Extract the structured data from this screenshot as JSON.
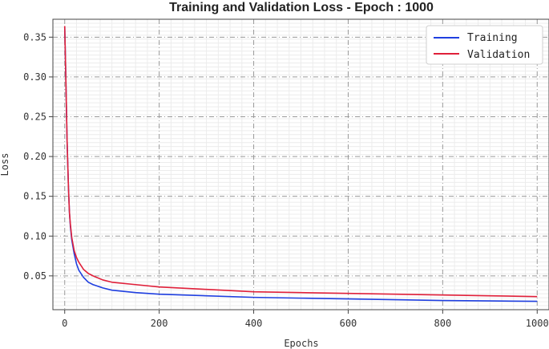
{
  "chart_data": {
    "type": "line",
    "title": "Training and Validation Loss - Epoch : 1000",
    "xlabel": "Epochs",
    "ylabel": "Loss",
    "xlim": [
      -25,
      1025
    ],
    "ylim": [
      0.0075,
      0.3725
    ],
    "xticks": [
      0,
      200,
      400,
      600,
      800,
      1000
    ],
    "yticks": [
      0.05,
      0.1,
      0.15,
      0.2,
      0.25,
      0.3,
      0.35
    ],
    "ytick_labels": [
      "0.05",
      "0.10",
      "0.15",
      "0.20",
      "0.25",
      "0.30",
      "0.35"
    ],
    "grid": true,
    "legend": "top-right",
    "series": [
      {
        "name": "Training",
        "color": "#1f3fe0",
        "x": [
          0,
          2,
          5,
          8,
          10,
          12,
          15,
          20,
          25,
          30,
          40,
          50,
          60,
          80,
          100,
          150,
          200,
          300,
          400,
          500,
          600,
          700,
          800,
          900,
          1000
        ],
        "y": [
          0.363,
          0.31,
          0.22,
          0.16,
          0.13,
          0.112,
          0.095,
          0.078,
          0.065,
          0.057,
          0.048,
          0.042,
          0.039,
          0.035,
          0.032,
          0.029,
          0.027,
          0.025,
          0.023,
          0.022,
          0.021,
          0.02,
          0.019,
          0.0185,
          0.018
        ]
      },
      {
        "name": "Validation",
        "color": "#e0203a",
        "x": [
          0,
          2,
          5,
          8,
          10,
          12,
          15,
          20,
          25,
          30,
          40,
          50,
          60,
          80,
          100,
          150,
          200,
          300,
          400,
          500,
          600,
          700,
          800,
          900,
          1000
        ],
        "y": [
          0.364,
          0.31,
          0.22,
          0.16,
          0.13,
          0.115,
          0.098,
          0.082,
          0.073,
          0.067,
          0.058,
          0.053,
          0.05,
          0.045,
          0.042,
          0.039,
          0.036,
          0.033,
          0.03,
          0.029,
          0.028,
          0.027,
          0.026,
          0.025,
          0.024
        ]
      }
    ]
  }
}
